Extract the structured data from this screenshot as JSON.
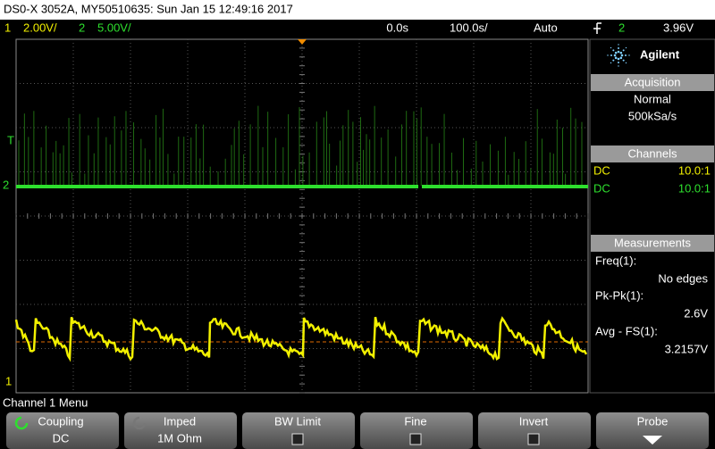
{
  "header": {
    "title": "DS0-X 3052A, MY50510635: Sun Jan 15 12:49:16 2017"
  },
  "status_bar": {
    "ch1_label": "1",
    "ch1_scale": "2.00V/",
    "ch2_label": "2",
    "ch2_scale": "5.00V/",
    "time_delay": "0.0s",
    "time_scale": "100.0s/",
    "trigger_mode": "Auto",
    "trigger_source": "2",
    "trigger_level": "3.96V"
  },
  "markers": {
    "trigger": "T",
    "ch2": "2",
    "ch1": "1"
  },
  "side_panel": {
    "brand": "Agilent",
    "acquisition": {
      "title": "Acquisition",
      "mode": "Normal",
      "rate": "500kSa/s"
    },
    "channels": {
      "title": "Channels",
      "rows": [
        [
          "DC",
          "10.0:1"
        ],
        [
          "DC",
          "10.0:1"
        ]
      ]
    },
    "measurements": {
      "title": "Measurements",
      "items": [
        {
          "label": "Freq(1):",
          "value": "No edges"
        },
        {
          "label": "Pk-Pk(1):",
          "value": "2.6V"
        },
        {
          "label": "Avg - FS(1):",
          "value": "3.2157V"
        }
      ]
    }
  },
  "menu": {
    "title": "Channel 1 Menu",
    "softkeys": [
      {
        "label": "Coupling",
        "value": "DC"
      },
      {
        "label": "Imped",
        "value": "1M Ohm"
      },
      {
        "label": "BW Limit"
      },
      {
        "label": "Fine"
      },
      {
        "label": "Invert"
      },
      {
        "label": "Probe"
      }
    ]
  }
}
